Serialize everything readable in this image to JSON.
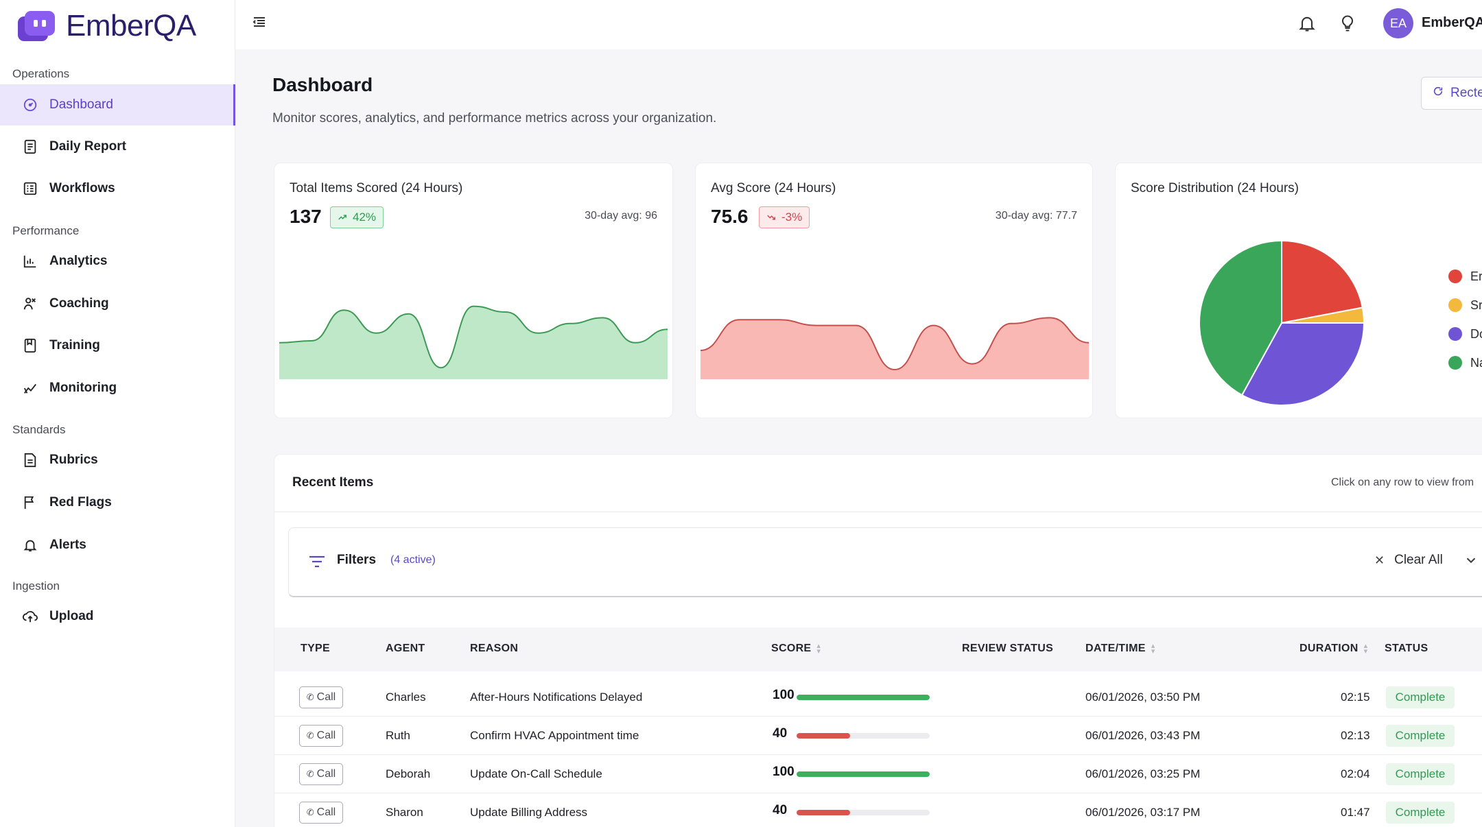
{
  "app": {
    "name": "EmberQA"
  },
  "sidebar": {
    "sections": [
      {
        "label": "Operations",
        "items": [
          {
            "label": "Dashboard",
            "icon": "dashboard-gauge-icon",
            "active": true
          },
          {
            "label": "Daily Report",
            "icon": "report-icon"
          },
          {
            "label": "Workflows",
            "icon": "workflows-icon"
          }
        ]
      },
      {
        "label": "Performance",
        "items": [
          {
            "label": "Analytics",
            "icon": "analytics-chart-icon"
          },
          {
            "label": "Coaching",
            "icon": "coaching-people-icon"
          },
          {
            "label": "Training",
            "icon": "training-book-icon"
          },
          {
            "label": "Monitoring",
            "icon": "monitoring-icon"
          }
        ]
      },
      {
        "label": "Standards",
        "items": [
          {
            "label": "Rubrics",
            "icon": "rubrics-document-icon"
          },
          {
            "label": "Red Flags",
            "icon": "flag-icon"
          },
          {
            "label": "Alerts",
            "icon": "bell-icon"
          }
        ]
      },
      {
        "label": "Ingestion",
        "items": [
          {
            "label": "Upload",
            "icon": "cloud-upload-icon"
          }
        ]
      }
    ]
  },
  "topbar": {
    "avatar_initials": "EA",
    "user_name": "EmberQA"
  },
  "header": {
    "title": "Dashboard",
    "subtitle": "Monitor scores, analytics, and performance metrics across your organization.",
    "refresh_label": "Recte"
  },
  "cards": {
    "total": {
      "title": "Total Items Scored (24 Hours)",
      "value": "137",
      "change": "42%",
      "avg": "30-day avg: 96",
      "color": "#3fae5f"
    },
    "avg": {
      "title": "Avg Score (24 Hours)",
      "value": "75.6",
      "change": "-3%",
      "avg": "30-day avg: 77.7",
      "color": "#e0625f"
    },
    "distribution": {
      "title": "Score Distribution (24 Hours)",
      "legend": [
        {
          "label": "Er",
          "color": "#e0443a"
        },
        {
          "label": "Sr",
          "color": "#f3b93c"
        },
        {
          "label": "Do",
          "color": "#6f55d6"
        },
        {
          "label": "Na",
          "color": "#3aa65a"
        }
      ]
    }
  },
  "chart_data": [
    {
      "type": "area",
      "values": [
        38,
        40,
        72,
        48,
        68,
        12,
        76,
        70,
        48,
        58,
        64,
        38,
        52
      ],
      "ylim": [
        0,
        100
      ]
    },
    {
      "type": "area",
      "values": [
        30,
        62,
        62,
        56,
        56,
        10,
        56,
        16,
        58,
        64,
        38
      ],
      "ylim": [
        0,
        100
      ]
    },
    {
      "type": "pie",
      "slices": [
        {
          "label": "Er",
          "value": 22,
          "color": "#e0443a"
        },
        {
          "label": "Sr",
          "value": 3,
          "color": "#f3b93c"
        },
        {
          "label": "Do",
          "value": 33,
          "color": "#6f55d6"
        },
        {
          "label": "Na",
          "value": 42,
          "color": "#3aa65a"
        }
      ]
    }
  ],
  "recent": {
    "title": "Recent Items",
    "hint": "Click on any row to view from",
    "filters": {
      "label": "Filters",
      "count": "(4 active)",
      "clear": "Clear All"
    },
    "columns": {
      "type": "TYPE",
      "agent": "AGENT",
      "reason": "REASON",
      "score": "SCORE",
      "review": "REVIEW STATUS",
      "datetime": "DATE/TIME",
      "duration": "DURATION",
      "status": "STATUS"
    },
    "rows": [
      {
        "type": "Call",
        "agent": "Charles",
        "reason": "After-Hours Notifications Delayed",
        "score": "100",
        "score_pct": 100,
        "datetime": "06/01/2026, 03:50 PM",
        "duration": "02:15",
        "status": "Complete"
      },
      {
        "type": "Call",
        "agent": "Ruth",
        "reason": "Confirm HVAC Appointment time",
        "score": "40",
        "score_pct": 40,
        "datetime": "06/01/2026, 03:43 PM",
        "duration": "02:13",
        "status": "Complete"
      },
      {
        "type": "Call",
        "agent": "Deborah",
        "reason": "Update On-Call Schedule",
        "score": "100",
        "score_pct": 100,
        "datetime": "06/01/2026, 03:25 PM",
        "duration": "02:04",
        "status": "Complete"
      },
      {
        "type": "Call",
        "agent": "Sharon",
        "reason": "Update Billing Address",
        "score": "40",
        "score_pct": 40,
        "datetime": "06/01/2026, 03:17 PM",
        "duration": "01:47",
        "status": "Complete"
      }
    ],
    "score_colors": {
      "high": "#3fae5f",
      "low": "#d9534f"
    }
  }
}
